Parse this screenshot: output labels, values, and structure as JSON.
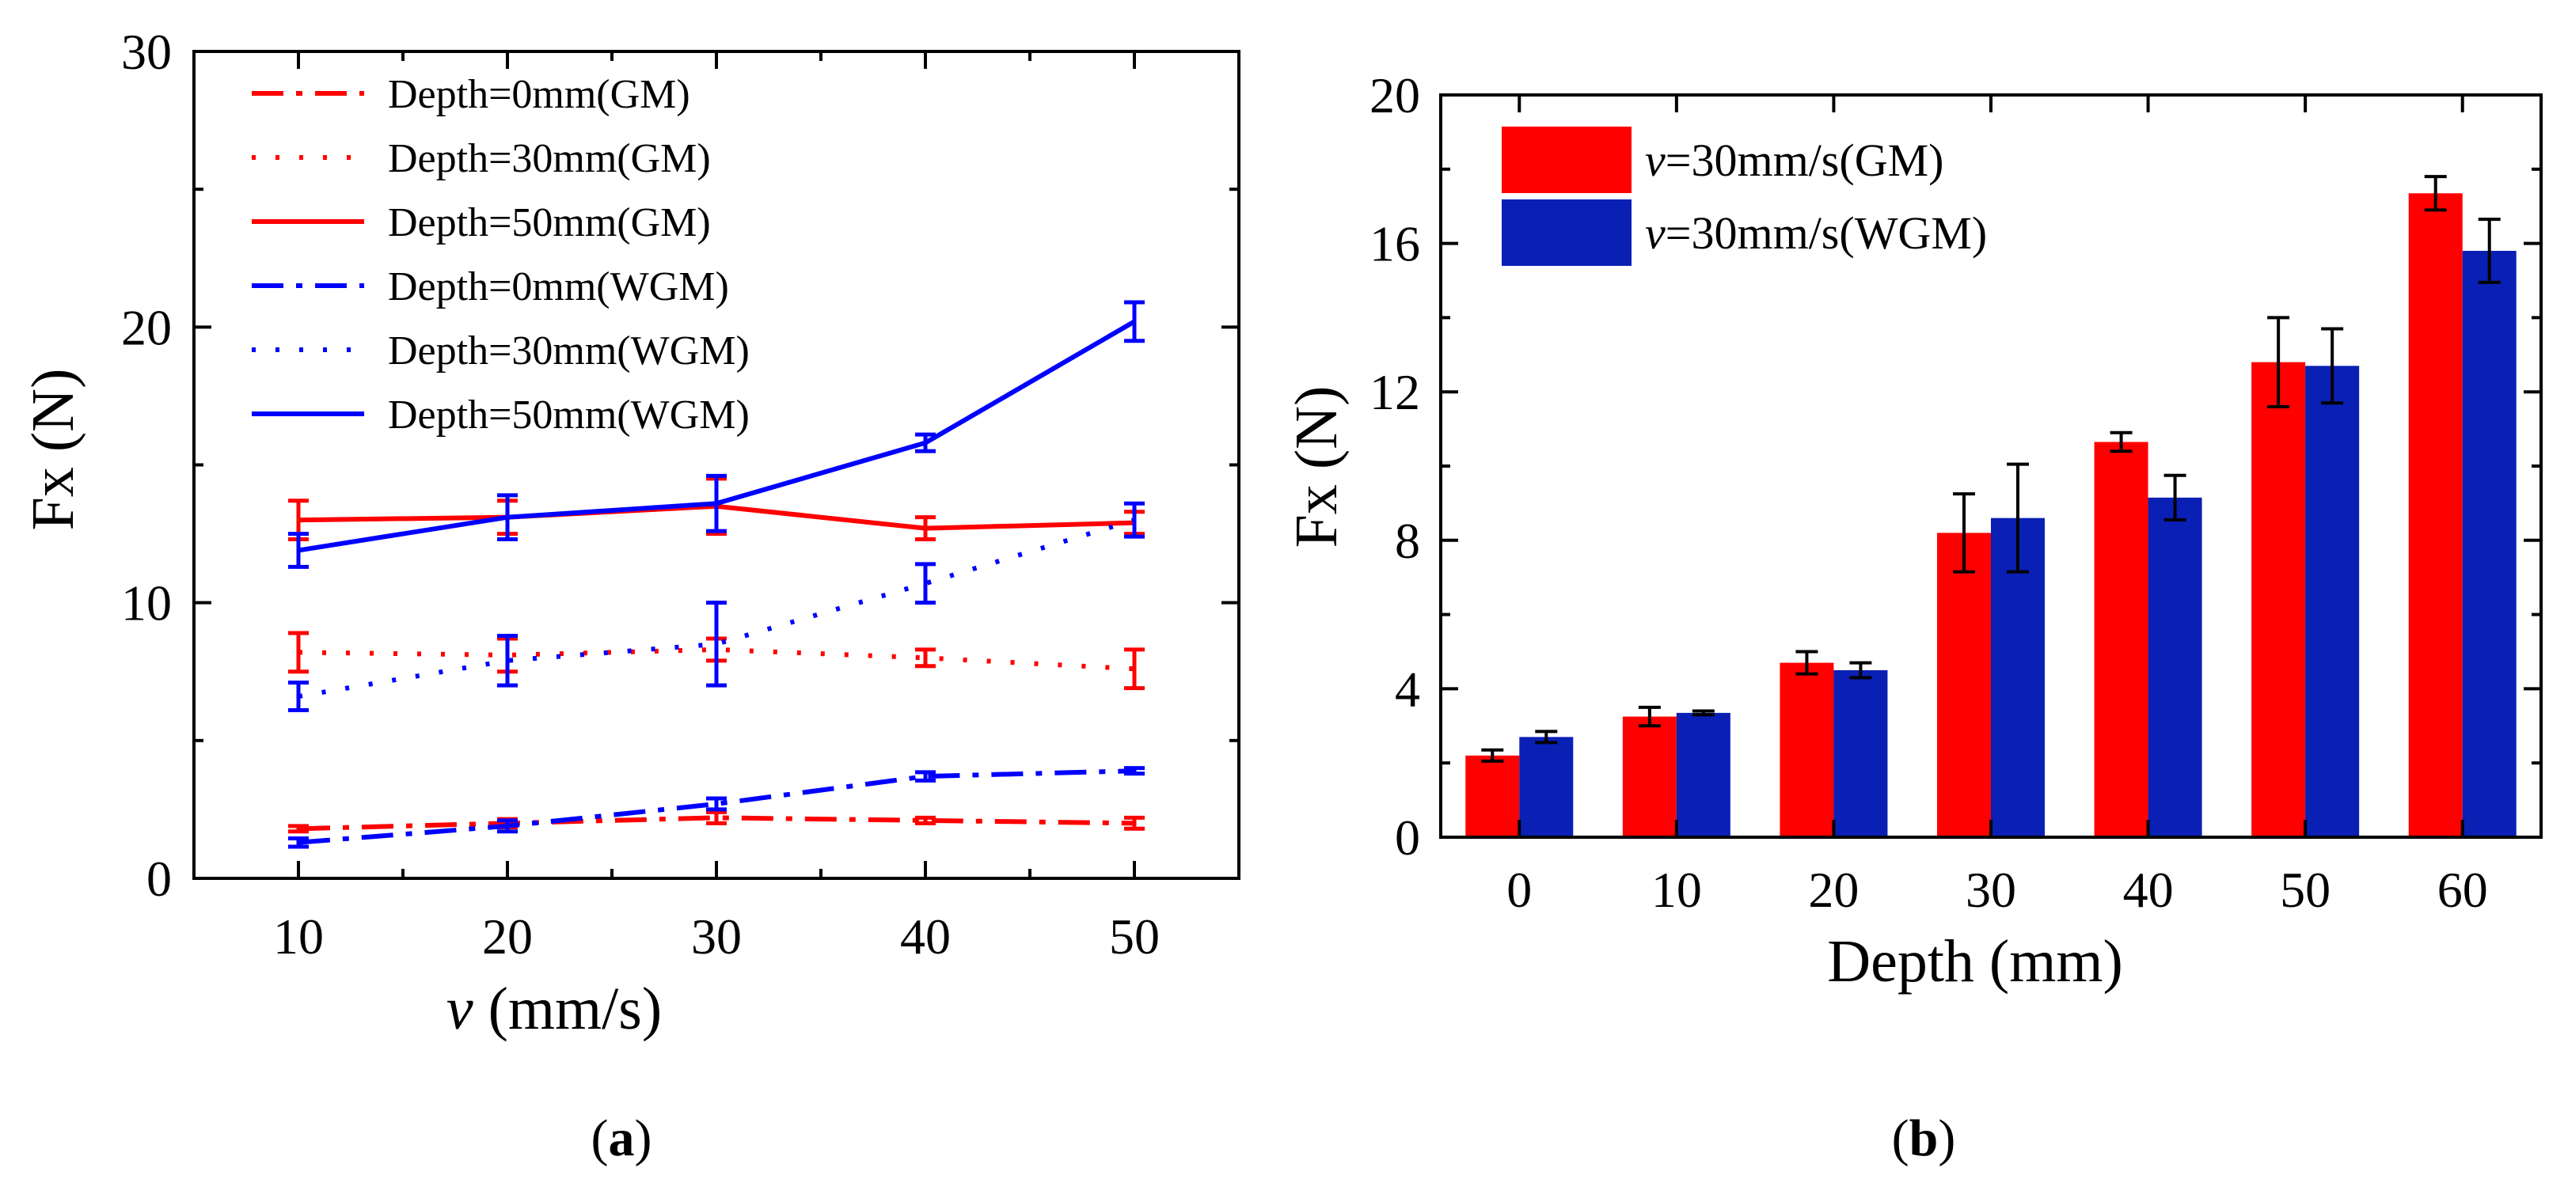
{
  "panels": {
    "a": {
      "label_prefix": "(",
      "label_letter": "a",
      "label_suffix": ")"
    },
    "b": {
      "label_prefix": "(",
      "label_letter": "b",
      "label_suffix": ")"
    }
  },
  "colors": {
    "gm": "#ff0000",
    "wgm": "#0000ff",
    "gm_bar": "#ff0000",
    "wgm_bar": "#0a1fb4",
    "axis": "#000000"
  },
  "chart_data": [
    {
      "id": "a",
      "type": "line",
      "title": "",
      "xlabel_italic": "v",
      "xlabel_rest": " (mm/s)",
      "ylabel": "Fx (N)",
      "xlim": [
        5,
        55
      ],
      "ylim": [
        0,
        30
      ],
      "xticks": [
        10,
        20,
        30,
        40,
        50
      ],
      "yticks": [
        0,
        10,
        20,
        30
      ],
      "x": [
        10,
        20,
        30,
        40,
        50
      ],
      "legend_position": "top-left",
      "series": [
        {
          "name": "Depth=0mm(GM)",
          "color": "red",
          "style": "dashdot",
          "values": [
            1.8,
            2.0,
            2.2,
            2.1,
            2.0
          ],
          "errors": [
            0.1,
            0.15,
            0.2,
            0.1,
            0.2
          ]
        },
        {
          "name": "Depth=30mm(GM)",
          "color": "red",
          "style": "dotted",
          "values": [
            8.2,
            8.1,
            8.3,
            8.0,
            7.6
          ],
          "errors": [
            0.7,
            0.6,
            0.4,
            0.3,
            0.7
          ]
        },
        {
          "name": "Depth=50mm(GM)",
          "color": "red",
          "style": "solid",
          "values": [
            13.0,
            13.1,
            13.5,
            12.7,
            12.9
          ],
          "errors": [
            0.7,
            0.6,
            1.0,
            0.4,
            0.4
          ]
        },
        {
          "name": "Depth=0mm(WGM)",
          "color": "blue",
          "style": "dashdot",
          "values": [
            1.3,
            1.9,
            2.7,
            3.7,
            3.9
          ],
          "errors": [
            0.15,
            0.2,
            0.2,
            0.15,
            0.1
          ]
        },
        {
          "name": "Depth=30mm(WGM)",
          "color": "blue",
          "style": "dotted",
          "values": [
            6.6,
            7.9,
            8.5,
            10.7,
            13.0
          ],
          "errors": [
            0.5,
            0.9,
            1.5,
            0.7,
            0.6
          ]
        },
        {
          "name": "Depth=50mm(WGM)",
          "color": "blue",
          "style": "solid",
          "values": [
            11.9,
            13.1,
            13.6,
            15.8,
            20.2
          ],
          "errors": [
            0.6,
            0.8,
            1.0,
            0.3,
            0.7
          ]
        }
      ]
    },
    {
      "id": "b",
      "type": "bar",
      "title": "",
      "xlabel": "Depth (mm)",
      "ylabel": "Fx (N)",
      "ylim": [
        0,
        20
      ],
      "yticks": [
        0,
        4,
        8,
        12,
        16,
        20
      ],
      "categories": [
        "0",
        "10",
        "20",
        "30",
        "40",
        "50",
        "60"
      ],
      "legend_position": "top-left",
      "series": [
        {
          "name_italic": "v",
          "name_rest": "=30mm/s(GM)",
          "color": "red",
          "values": [
            2.2,
            3.25,
            4.7,
            8.2,
            10.65,
            12.8,
            17.35
          ],
          "errors": [
            0.15,
            0.25,
            0.3,
            1.05,
            0.25,
            1.2,
            0.45
          ]
        },
        {
          "name_italic": "v",
          "name_rest": "=30mm/s(WGM)",
          "color": "blue",
          "values": [
            2.7,
            3.35,
            4.5,
            8.6,
            9.15,
            12.7,
            15.8
          ],
          "errors": [
            0.15,
            0.05,
            0.2,
            1.45,
            0.6,
            1.0,
            0.85
          ]
        }
      ]
    }
  ]
}
